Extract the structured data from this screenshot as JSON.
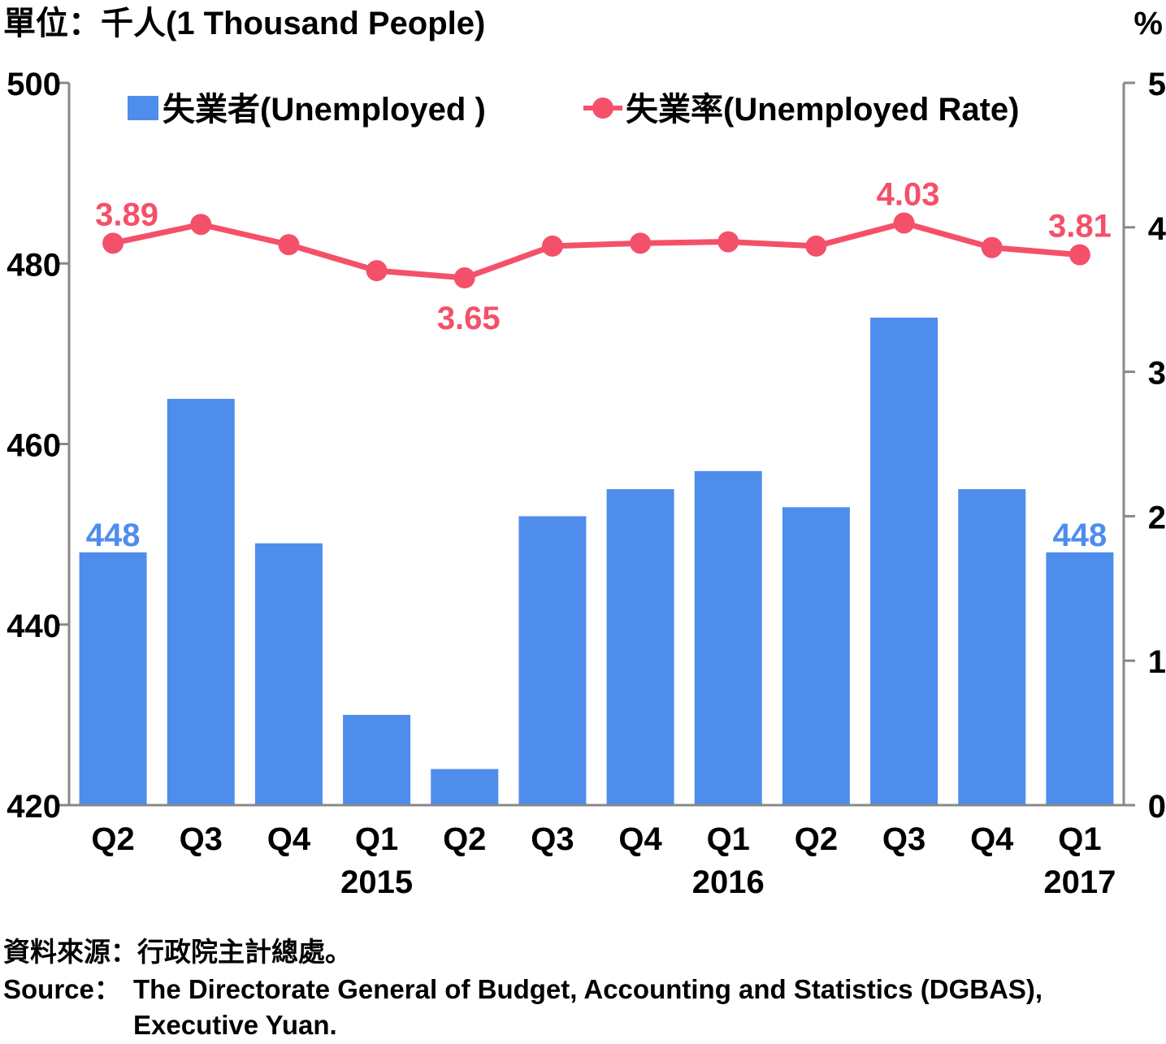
{
  "chart_data": {
    "type": "bar+line",
    "unit_left": "單位：千人(1 Thousand People)",
    "unit_right": "%",
    "categories": [
      "Q2",
      "Q3",
      "Q4",
      "Q1",
      "Q2",
      "Q3",
      "Q4",
      "Q1",
      "Q2",
      "Q3",
      "Q4",
      "Q1"
    ],
    "years": [
      {
        "label": "2015",
        "category_index": 3
      },
      {
        "label": "2016",
        "category_index": 7
      },
      {
        "label": "2017",
        "category_index": 11
      }
    ],
    "series": [
      {
        "name": "失業者(Unemployed )",
        "type": "bar",
        "axis": "left",
        "color": "#4f8ded",
        "label_color": "#4f8ded",
        "values": [
          448,
          465,
          449,
          430,
          424,
          452,
          455,
          457,
          453,
          474,
          455,
          448
        ],
        "labeled_indices": [
          0,
          11
        ]
      },
      {
        "name": "失業率(Unemployed Rate)",
        "type": "line",
        "axis": "right",
        "color": "#f4506a",
        "values": [
          3.89,
          4.02,
          3.88,
          3.7,
          3.65,
          3.87,
          3.89,
          3.9,
          3.87,
          4.03,
          3.86,
          3.81
        ],
        "labeled_indices": [
          0,
          4,
          9,
          11
        ]
      }
    ],
    "y_left": {
      "min": 420,
      "max": 500,
      "ticks": [
        420,
        440,
        460,
        480,
        500
      ]
    },
    "y_right": {
      "min": 0,
      "max": 5,
      "ticks": [
        0,
        1,
        2,
        3,
        4,
        5
      ]
    },
    "legend_position": "top"
  },
  "source": {
    "zh": "資料來源：行政院主計總處。",
    "en_prefix": "Source：",
    "en_line1": "The Directorate General of Budget, Accounting and Statistics (DGBAS),",
    "en_line2": "Executive Yuan."
  }
}
